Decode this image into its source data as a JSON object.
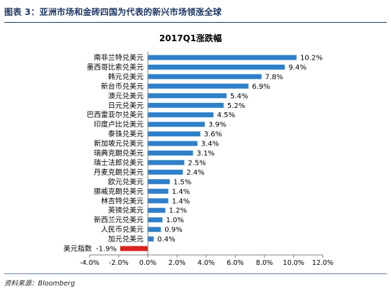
{
  "figure": {
    "title": "图表 3：亚洲市场和金砖四国为代表的新兴市场领涨全球",
    "source": "资料来源：Bloomberg"
  },
  "colors": {
    "positive": "#2f80c9",
    "negative": "#d9211e",
    "title": "#1f3864"
  },
  "chart_data": {
    "type": "bar",
    "orientation": "horizontal",
    "title": "2017Q1涨跌幅",
    "categories": [
      "南非兰特兑美元",
      "墨西哥比索兑美元",
      "韩元兑美元",
      "新台币兑美元",
      "澳元兑美元",
      "日元兑美元",
      "巴西雷亚尔兑美元",
      "印度卢比兑美元",
      "泰铢兑美元",
      "新加坡元兑美元",
      "瑞典克朗兑美元",
      "瑞士法郎兑美元",
      "丹麦克朗兑美元",
      "欧元兑美元",
      "挪威克朗兑美元",
      "林吉特兑美元",
      "英镑兑美元",
      "新西兰元兑美元",
      "人民币兑美元",
      "加元兑美元",
      "美元指数"
    ],
    "values": [
      10.2,
      9.4,
      7.8,
      6.9,
      5.4,
      5.2,
      4.5,
      3.9,
      3.6,
      3.4,
      3.1,
      2.5,
      2.4,
      1.5,
      1.4,
      1.4,
      1.2,
      1.0,
      0.9,
      0.4,
      -1.9
    ],
    "value_labels": [
      "10.2%",
      "9.4%",
      "7.8%",
      "6.9%",
      "5.4%",
      "5.2%",
      "4.5%",
      "3.9%",
      "3.6%",
      "3.4%",
      "3.1%",
      "2.5%",
      "2.4%",
      "1.5%",
      "1.4%",
      "1.4%",
      "1.2%",
      "1.0%",
      "0.9%",
      "0.4%",
      "-1.9%"
    ],
    "xlim": [
      -4.0,
      12.0
    ],
    "xticks": [
      -4.0,
      -2.0,
      0.0,
      2.0,
      4.0,
      6.0,
      8.0,
      10.0,
      12.0
    ],
    "xtick_labels": [
      "-4.0%",
      "-2.0%",
      "0.0%",
      "2.0%",
      "4.0%",
      "6.0%",
      "8.0%",
      "10.0%",
      "12.0%"
    ],
    "grid": false,
    "legend": "none"
  }
}
